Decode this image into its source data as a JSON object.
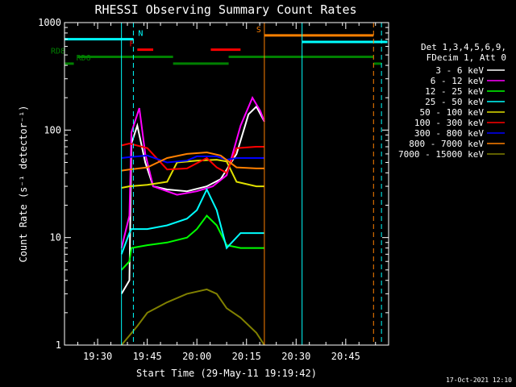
{
  "chart_data": {
    "type": "line",
    "title": "RHESSI Observing Summary Count Rates",
    "xlabel": "Start Time (29-May-11 19:19:42)",
    "ylabel": "Count Rate (s⁻¹ detector⁻¹)",
    "y_scale": "log",
    "ylim": [
      1,
      1000
    ],
    "y_ticks": [
      {
        "value": 1,
        "label": "1"
      },
      {
        "value": 10,
        "label": "10"
      },
      {
        "value": 100,
        "label": "100"
      },
      {
        "value": 1000,
        "label": "1000"
      }
    ],
    "x_range_minutes": [
      19.333,
      20.966
    ],
    "x_ticks": [
      {
        "value": 19.5,
        "label": "19:30"
      },
      {
        "value": 19.75,
        "label": "19:45"
      },
      {
        "value": 20.0,
        "label": "20:00"
      },
      {
        "value": 20.25,
        "label": "20:15"
      },
      {
        "value": 20.5,
        "label": "20:30"
      },
      {
        "value": 20.75,
        "label": "20:45"
      }
    ],
    "legend_header": [
      "Det 1,3,4,5,6,9,",
      "FDecim 1, Att 0"
    ],
    "legend_placement": "right",
    "series": [
      {
        "name": "3 - 6 keV",
        "color": "#ffffff",
        "points": [
          [
            19.62,
            3
          ],
          [
            19.66,
            4
          ],
          [
            19.67,
            75
          ],
          [
            19.7,
            110
          ],
          [
            19.74,
            50
          ],
          [
            19.78,
            30
          ],
          [
            19.85,
            28
          ],
          [
            19.95,
            27
          ],
          [
            20.05,
            30
          ],
          [
            20.12,
            35
          ],
          [
            20.2,
            60
          ],
          [
            20.26,
            140
          ],
          [
            20.3,
            165
          ],
          [
            20.34,
            120
          ]
        ]
      },
      {
        "name": "6 - 12 keV",
        "color": "#ff00ff",
        "points": [
          [
            19.62,
            8
          ],
          [
            19.66,
            16
          ],
          [
            19.67,
            95
          ],
          [
            19.71,
            160
          ],
          [
            19.74,
            60
          ],
          [
            19.78,
            30
          ],
          [
            19.9,
            25
          ],
          [
            20.0,
            27
          ],
          [
            20.08,
            30
          ],
          [
            20.15,
            38
          ],
          [
            20.22,
            110
          ],
          [
            20.28,
            200
          ],
          [
            20.32,
            150
          ],
          [
            20.34,
            120
          ]
        ]
      },
      {
        "name": "12 - 25 keV",
        "color": "#00ff00",
        "points": [
          [
            19.62,
            5
          ],
          [
            19.66,
            6
          ],
          [
            19.67,
            8
          ],
          [
            19.75,
            8.5
          ],
          [
            19.85,
            9
          ],
          [
            19.95,
            10
          ],
          [
            20.0,
            12
          ],
          [
            20.05,
            16
          ],
          [
            20.1,
            13
          ],
          [
            20.15,
            8.5
          ],
          [
            20.22,
            8
          ],
          [
            20.3,
            8
          ],
          [
            20.34,
            8
          ]
        ]
      },
      {
        "name": "25 - 50 keV",
        "color": "#00ffff",
        "points": [
          [
            19.62,
            7
          ],
          [
            19.66,
            11
          ],
          [
            19.67,
            12
          ],
          [
            19.75,
            12
          ],
          [
            19.85,
            13
          ],
          [
            19.95,
            15
          ],
          [
            20.0,
            18
          ],
          [
            20.05,
            28
          ],
          [
            20.1,
            18
          ],
          [
            20.15,
            8
          ],
          [
            20.22,
            11
          ],
          [
            20.3,
            11
          ],
          [
            20.34,
            11
          ]
        ]
      },
      {
        "name": "50 - 100 keV",
        "color": "#e0e000",
        "points": [
          [
            19.62,
            29
          ],
          [
            19.66,
            30
          ],
          [
            19.75,
            31
          ],
          [
            19.85,
            33
          ],
          [
            19.9,
            50
          ],
          [
            20.0,
            52
          ],
          [
            20.1,
            53
          ],
          [
            20.15,
            51
          ],
          [
            20.2,
            33
          ],
          [
            20.3,
            30
          ],
          [
            20.34,
            30
          ]
        ]
      },
      {
        "name": "100 - 300 keV",
        "color": "#ff0000",
        "points": [
          [
            19.62,
            72
          ],
          [
            19.66,
            75
          ],
          [
            19.75,
            68
          ],
          [
            19.85,
            43
          ],
          [
            19.95,
            44
          ],
          [
            20.05,
            55
          ],
          [
            20.1,
            45
          ],
          [
            20.15,
            40
          ],
          [
            20.2,
            68
          ],
          [
            20.3,
            70
          ],
          [
            20.34,
            70
          ]
        ]
      },
      {
        "name": "300 - 800 keV",
        "color": "#0000ff",
        "points": [
          [
            19.62,
            55
          ],
          [
            19.66,
            56
          ],
          [
            19.75,
            58
          ],
          [
            19.85,
            50
          ],
          [
            19.95,
            52
          ],
          [
            20.0,
            57
          ],
          [
            20.1,
            57
          ],
          [
            20.15,
            53
          ],
          [
            20.2,
            55
          ],
          [
            20.3,
            55
          ],
          [
            20.34,
            55
          ]
        ]
      },
      {
        "name": "800 - 7000 keV",
        "color": "#ff8000",
        "points": [
          [
            19.62,
            42
          ],
          [
            19.66,
            43
          ],
          [
            19.75,
            45
          ],
          [
            19.85,
            55
          ],
          [
            19.95,
            60
          ],
          [
            20.05,
            62
          ],
          [
            20.12,
            58
          ],
          [
            20.2,
            45
          ],
          [
            20.3,
            44
          ],
          [
            20.34,
            44
          ]
        ]
      },
      {
        "name": "7000 - 15000 keV",
        "color": "#808000",
        "points": [
          [
            19.62,
            1.0
          ],
          [
            19.7,
            1.5
          ],
          [
            19.75,
            2.0
          ],
          [
            19.85,
            2.5
          ],
          [
            19.95,
            3.0
          ],
          [
            20.05,
            3.3
          ],
          [
            20.1,
            3.0
          ],
          [
            20.15,
            2.2
          ],
          [
            20.22,
            1.8
          ],
          [
            20.3,
            1.3
          ],
          [
            20.34,
            1.0
          ]
        ]
      }
    ],
    "flags": [
      {
        "label": "N",
        "color": "#00ffff",
        "level": 700,
        "segments": [
          [
            19.333,
            19.68
          ]
        ]
      },
      {
        "label": "F",
        "color": "#ff0000",
        "level": 560,
        "segments": [
          [
            19.7,
            19.78
          ],
          [
            20.07,
            20.22
          ]
        ]
      },
      {
        "label": "S",
        "color": "#ff8000",
        "level": 760,
        "segments": [
          [
            20.34,
            20.89
          ]
        ]
      },
      {
        "label": "",
        "color": "#00ffff",
        "level": 660,
        "segments": [
          [
            20.53,
            20.96
          ]
        ]
      },
      {
        "label": "RD8",
        "color": "#008000",
        "level": 480,
        "segments": [
          [
            19.4,
            19.88
          ],
          [
            20.16,
            20.89
          ]
        ]
      },
      {
        "label": "RD6",
        "color": "#008000",
        "level": 415,
        "segments": [
          [
            19.333,
            19.38
          ],
          [
            19.88,
            20.16
          ],
          [
            20.89,
            20.93
          ]
        ]
      }
    ],
    "vertical_lines": [
      {
        "x": 19.333,
        "color": "#00ffff",
        "style": "solid"
      },
      {
        "x": 19.62,
        "color": "#00ffff",
        "style": "solid"
      },
      {
        "x": 19.68,
        "color": "#00ffff",
        "style": "dashed"
      },
      {
        "x": 20.34,
        "color": "#ff8000",
        "style": "solid"
      },
      {
        "x": 20.53,
        "color": "#00ffff",
        "style": "solid"
      },
      {
        "x": 20.89,
        "color": "#ff8000",
        "style": "dashed"
      },
      {
        "x": 20.93,
        "color": "#00ffff",
        "style": "dashed"
      }
    ],
    "timestamp": "17-Oct-2021 12:10"
  }
}
